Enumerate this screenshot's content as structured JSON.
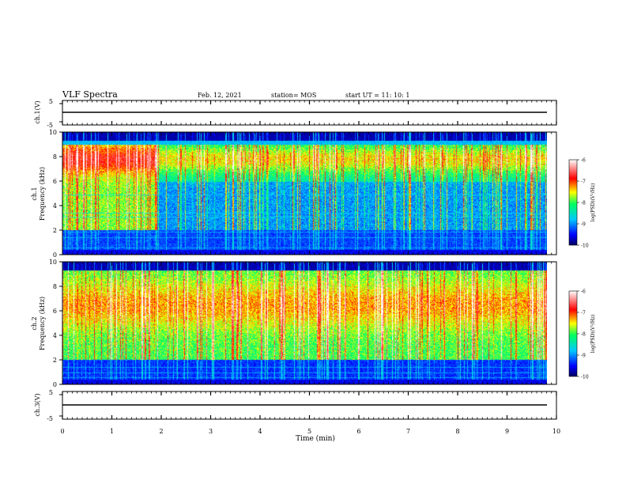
{
  "header": {
    "title": "VLF Spectra",
    "date": "Feb. 12, 2021",
    "station": "station= MOS",
    "start_ut": "start  UT =    11: 10: 1"
  },
  "panels": {
    "ch1_waveform": {
      "ylabel": "ch.1(V)",
      "yticks": [
        "5",
        "-5"
      ]
    },
    "ch1_spectrogram": {
      "ylabel_line1": "ch.1",
      "ylabel_line2": "Frequency (kHz)"
    },
    "ch2_spectrogram": {
      "ylabel_line1": "ch.2",
      "ylabel_line2": "Frequency (kHz)"
    },
    "ch3_waveform": {
      "ylabel": "ch.3(V)",
      "yticks": [
        "5",
        "-5"
      ]
    }
  },
  "colorbar": {
    "label": "log(PSD)(V²/Hz)",
    "ticks": [
      "-6",
      "-7",
      "-8",
      "-9",
      "-10"
    ],
    "colors": [
      "#00006a",
      "#0000ff",
      "#00c8ff",
      "#00ff64",
      "#ffff00",
      "#ff0000",
      "#ffffff"
    ]
  },
  "chart_data": [
    {
      "type": "line",
      "title": "",
      "xlabel": "",
      "ylabel": "ch.1(V)",
      "xlim": [
        0,
        10
      ],
      "ylim": [
        -5,
        5
      ],
      "series": [
        {
          "values_description": "flat",
          "x": [
            0,
            9.8
          ],
          "y": [
            0,
            0
          ]
        }
      ]
    },
    {
      "type": "heatmap",
      "ylabel": "Frequency (kHz)",
      "xlim": [
        0,
        10
      ],
      "ylim": [
        0,
        10
      ],
      "xticks": [
        "0",
        "1",
        "2",
        "3",
        "4",
        "5",
        "6",
        "7",
        "8",
        "9",
        "10"
      ],
      "yticks": [
        "0",
        "2",
        "4",
        "6",
        "8",
        "10"
      ],
      "zlim": [
        -10,
        -6
      ],
      "data_end_min": 9.8
    },
    {
      "type": "heatmap",
      "ylabel": "Frequency (kHz)",
      "xlim": [
        0,
        10
      ],
      "ylim": [
        0,
        10
      ],
      "yticks": [
        "0",
        "2",
        "4",
        "6",
        "8",
        "10"
      ],
      "zlim": [
        -10,
        -6
      ],
      "data_end_min": 9.8
    },
    {
      "type": "line",
      "ylabel": "ch.3(V)",
      "xlim": [
        0,
        10
      ],
      "ylim": [
        -5,
        5
      ],
      "xlabel": "Time (min)",
      "xticks": [
        "0",
        "1",
        "2",
        "3",
        "4",
        "5",
        "6",
        "7",
        "8",
        "9",
        "10"
      ],
      "series": [
        {
          "x": [
            0,
            9.8
          ],
          "y": [
            0,
            0
          ]
        }
      ]
    }
  ]
}
